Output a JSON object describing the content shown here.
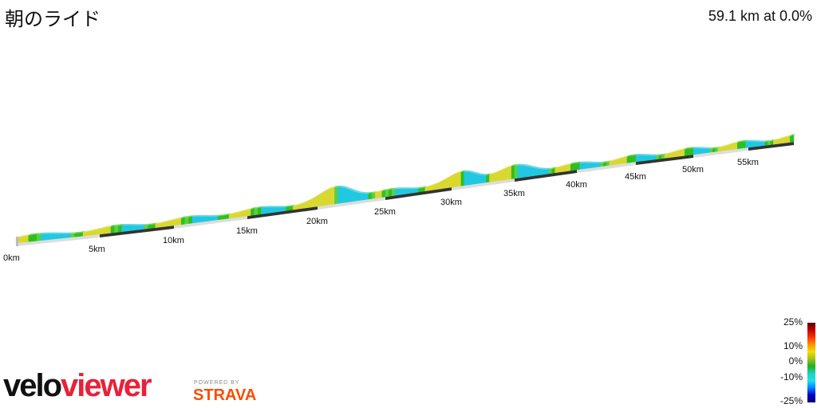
{
  "header": {
    "title": "朝のライド",
    "summary": "59.1 km at 0.0%"
  },
  "distance_labels": [
    "0km",
    "5km",
    "10km",
    "15km",
    "20km",
    "25km",
    "30km",
    "35km",
    "40km",
    "45km",
    "50km",
    "55km"
  ],
  "total_distance_km": 59.1,
  "legend": {
    "labels": [
      "25%",
      "10%",
      "0%",
      "-10%",
      "-25%"
    ]
  },
  "branding": {
    "logo_a": "velo",
    "logo_b": "viewer",
    "powered": "POWERED BY",
    "strava": "STRAVA"
  },
  "colors": {
    "flat": "#2dbf1f",
    "climb": "#d8d830",
    "descent": "#20c8e0",
    "strava": "#fc4c02",
    "veloviewer": "#e8213a"
  }
}
